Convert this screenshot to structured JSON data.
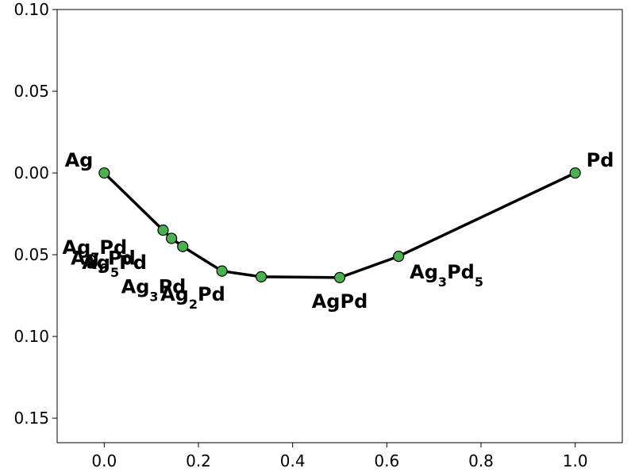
{
  "chart_data": {
    "type": "line",
    "xlim": [
      -0.1,
      1.1
    ],
    "ylim": [
      -0.165,
      0.1
    ],
    "y_inverted_labels": true,
    "xticks": [
      {
        "value": 0.0,
        "label": "0.0"
      },
      {
        "value": 0.2,
        "label": "0.2"
      },
      {
        "value": 0.4,
        "label": "0.4"
      },
      {
        "value": 0.6,
        "label": "0.6"
      },
      {
        "value": 0.8,
        "label": "0.8"
      },
      {
        "value": 1.0,
        "label": "1.0"
      }
    ],
    "yticks": [
      {
        "value": 0.1,
        "label": "0.10"
      },
      {
        "value": 0.05,
        "label": "0.05"
      },
      {
        "value": 0.0,
        "label": "0.00"
      },
      {
        "value": -0.05,
        "label": "0.05"
      },
      {
        "value": -0.1,
        "label": "0.10"
      },
      {
        "value": -0.15,
        "label": "0.15"
      }
    ],
    "line_color": "#000000",
    "marker_color": "#4caf50",
    "points": [
      {
        "x": 0.0,
        "y": 0.0,
        "label_parts": [
          {
            "t": "Ag",
            "sub": false
          }
        ],
        "label_anchor": "end",
        "label_dx": -14,
        "label_dy": -8
      },
      {
        "x": 0.125,
        "y": -0.035,
        "label_parts": [
          {
            "t": "Ag",
            "sub": false
          },
          {
            "t": "7",
            "sub": true
          },
          {
            "t": "Pd",
            "sub": false
          }
        ],
        "label_anchor": "start",
        "label_dx": -127,
        "label_dy": 30
      },
      {
        "x": 0.1429,
        "y": -0.04,
        "label_parts": [
          {
            "t": "Ag",
            "sub": false
          },
          {
            "t": "6",
            "sub": true
          },
          {
            "t": "Pd",
            "sub": false
          }
        ],
        "label_anchor": "start",
        "label_dx": -127,
        "label_dy": 33
      },
      {
        "x": 0.1667,
        "y": -0.045,
        "label_parts": [
          {
            "t": "Ag",
            "sub": false
          },
          {
            "t": "5",
            "sub": true
          },
          {
            "t": "Pd",
            "sub": false
          }
        ],
        "label_anchor": "start",
        "label_dx": -127,
        "label_dy": 28
      },
      {
        "x": 0.25,
        "y": -0.06,
        "label_parts": [
          {
            "t": "Ag",
            "sub": false
          },
          {
            "t": "3",
            "sub": true
          },
          {
            "t": "Pd",
            "sub": false
          }
        ],
        "label_anchor": "start",
        "label_dx": -127,
        "label_dy": 28
      },
      {
        "x": 0.3333,
        "y": -0.0635,
        "label_parts": [
          {
            "t": "Ag",
            "sub": false
          },
          {
            "t": "2",
            "sub": true
          },
          {
            "t": "Pd",
            "sub": false
          }
        ],
        "label_anchor": "start",
        "label_dx": -127,
        "label_dy": 30
      },
      {
        "x": 0.5,
        "y": -0.064,
        "label_parts": [
          {
            "t": "AgPd",
            "sub": false
          }
        ],
        "label_anchor": "middle",
        "label_dx": 0,
        "label_dy": 38
      },
      {
        "x": 0.625,
        "y": -0.051,
        "label_parts": [
          {
            "t": "Ag",
            "sub": false
          },
          {
            "t": "3",
            "sub": true
          },
          {
            "t": "Pd",
            "sub": false
          },
          {
            "t": "5",
            "sub": true
          }
        ],
        "label_anchor": "start",
        "label_dx": 14,
        "label_dy": 28
      },
      {
        "x": 1.0,
        "y": 0.0,
        "label_parts": [
          {
            "t": "Pd",
            "sub": false
          }
        ],
        "label_anchor": "start",
        "label_dx": 14,
        "label_dy": -8
      }
    ]
  }
}
